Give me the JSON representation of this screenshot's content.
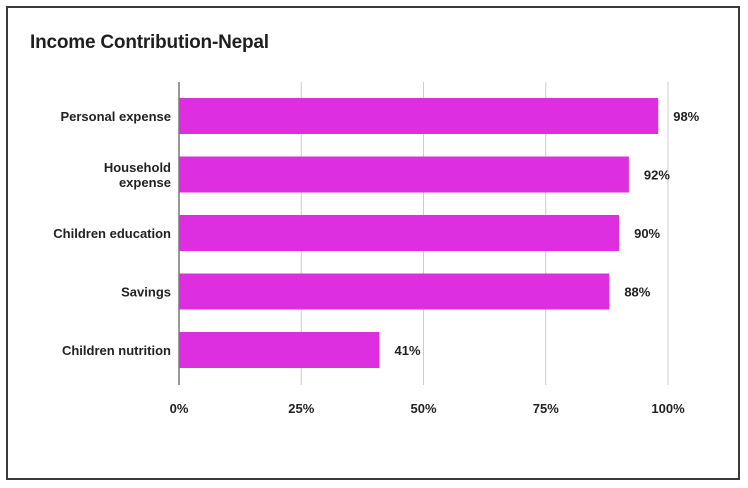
{
  "chart_data": {
    "type": "bar",
    "orientation": "horizontal",
    "title": "Income Contribution-Nepal",
    "categories": [
      [
        "Personal expense"
      ],
      [
        "Household",
        "expense"
      ],
      [
        "Children education"
      ],
      [
        "Savings"
      ],
      [
        "Children nutrition"
      ]
    ],
    "values": [
      98,
      92,
      90,
      88,
      41
    ],
    "value_labels": [
      "98%",
      "92%",
      "90%",
      "88%",
      "41%"
    ],
    "xlim": [
      0,
      100
    ],
    "xticks": [
      0,
      25,
      50,
      75,
      100
    ],
    "xtick_labels": [
      "0%",
      "25%",
      "50%",
      "75%",
      "100%"
    ],
    "xlabel": "",
    "ylabel": "",
    "grid": "vertical",
    "legend": "none",
    "bar_color": "#dd2ee0",
    "grid_color": "#cccccc"
  }
}
